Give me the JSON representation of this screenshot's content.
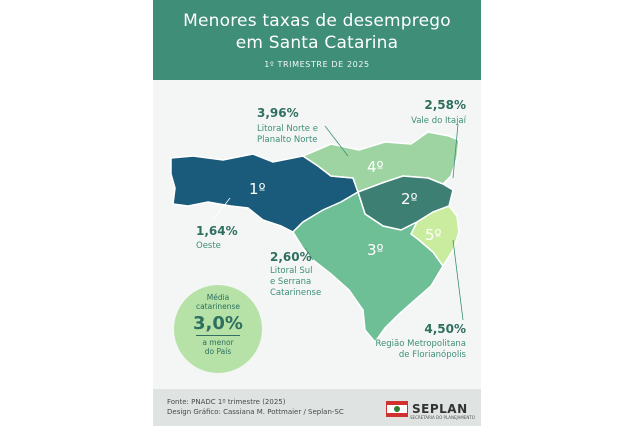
{
  "header": {
    "title_line1": "Menores taxas de desemprego",
    "title_line2": "em Santa Catarina",
    "subtitle": "1º TRIMESTRE DE 2025"
  },
  "regions": [
    {
      "rank": "1º",
      "rate": "1,64%",
      "name": "Oeste",
      "color": "#1a5a7a"
    },
    {
      "rank": "2º",
      "rate": "2,58%",
      "name": "Vale do Itajaí",
      "color": "#3e7f74"
    },
    {
      "rank": "3º",
      "rate": "2,60%",
      "name_lines": [
        "Litoral Sul",
        "e Serrana",
        "Catarinense"
      ],
      "color": "#6fbf96"
    },
    {
      "rank": "4º",
      "rate": "3,96%",
      "name_lines": [
        "Litoral Norte e",
        "Planalto Norte"
      ],
      "color": "#9ed4a2"
    },
    {
      "rank": "5º",
      "rate": "4,50%",
      "name_lines": [
        "Região Metropolitana",
        "de Florianópolis"
      ],
      "color": "#c9ec9e"
    }
  ],
  "average": {
    "line1": "Média",
    "line2": "catarinense",
    "value": "3,0%",
    "line3": "a menor",
    "line4": "do País"
  },
  "footer": {
    "source": "Fonte: PNADC 1º trimestre (2025)",
    "design": "Design Gráfico: Cassiana M. Pottmaier / Seplan-SC",
    "logo_word": "SEPLAN",
    "logo_tag": "SECRETARIA DO PLANEJAMENTO"
  }
}
